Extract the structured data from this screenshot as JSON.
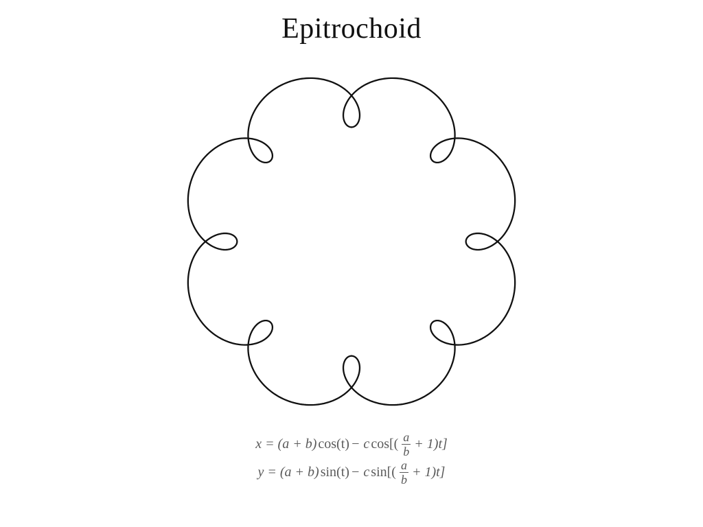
{
  "title": "Epitrochoid",
  "curve": {
    "type": "parametric-curve",
    "name": "epitrochoid",
    "params": {
      "a": 8,
      "b": 1,
      "c": 1.8
    },
    "t_range": [
      0,
      6.283185307179586
    ],
    "samples": 1200,
    "stroke_color": "#111111",
    "stroke_width": 2.3,
    "background_color": "#ffffff",
    "viewbox_pad": 1.12,
    "aspect": 1.0
  },
  "formula": {
    "color": "#5a5a5a",
    "fontsize_pt": 20,
    "x_lead": "x = (a + b)",
    "y_lead": "y = (a + b)",
    "cos_t": "cos(t)",
    "sin_t": "sin(t)",
    "minus_c": " − c ",
    "cos_open": "cos[(",
    "sin_open": "sin[(",
    "frac_num": "a",
    "frac_den": "b",
    "tail": " + 1)t]"
  }
}
